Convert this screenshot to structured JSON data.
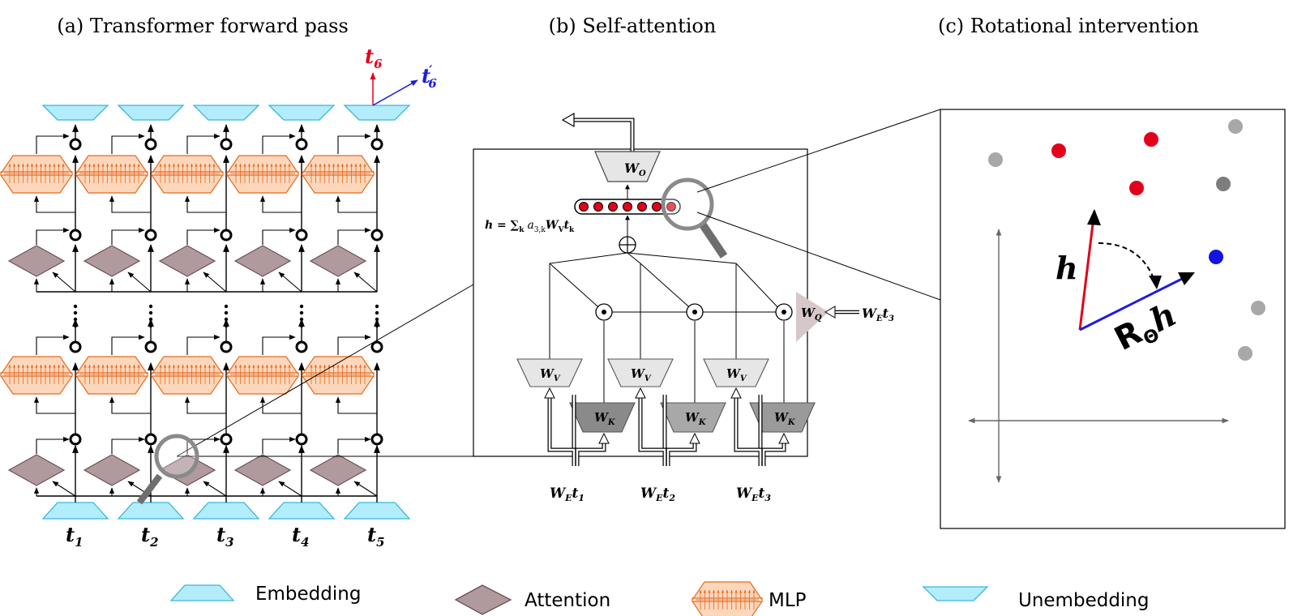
{
  "panels": {
    "a": "(a) Transformer forward pass",
    "b": "(b) Self-attention",
    "c": "(c) Rotational intervention"
  },
  "tokens": [
    "1",
    "2",
    "3",
    "4",
    "5"
  ],
  "token_letter": "t",
  "t6": {
    "letter": "t",
    "sub": "6"
  },
  "t6prime": {
    "letter": "t",
    "prime": "′",
    "sub": "6"
  },
  "attn": {
    "h_formula": "h = ∑",
    "h_formula_sub": "k",
    "h_formula_rest": "a",
    "h_formula_rest_sub": "3,k",
    "h_formula_tail": "W",
    "h_formula_tail_sub": "V",
    "h_formula_t": "t",
    "h_formula_t_sub": "k",
    "wo": "W",
    "wo_sub": "O",
    "wq": "W",
    "wq_sub": "Q",
    "wv": "W",
    "wv_sub": "V",
    "wk": "W",
    "wk_sub": "K",
    "we": "W",
    "we_sub": "E",
    "inputs": [
      {
        "t": "t",
        "sub": "1"
      },
      {
        "t": "t",
        "sub": "2"
      },
      {
        "t": "t",
        "sub": "3"
      }
    ],
    "query_input": {
      "t": "t",
      "sub": "3"
    }
  },
  "rot": {
    "h": "h",
    "r": "R",
    "r_sub": "Θ",
    "rh": "h"
  },
  "legend": {
    "embedding": "Embedding",
    "attention": "Attention",
    "mlp": "MLP",
    "unembedding": "Unembedding"
  },
  "colors": {
    "cyan_fill": "#b3ecfb",
    "cyan_stroke": "#39b7d8",
    "attn_fill": "#b09a9e",
    "attn_stroke": "#6b4f55",
    "mlp_fill": "#fcd7bc",
    "mlp_stroke": "#e66a1f",
    "red": "#e3001b",
    "blue": "#1d1ddb",
    "grey_dot": "#a8a8a8",
    "dark_grey_dot": "#7d7d7d"
  }
}
